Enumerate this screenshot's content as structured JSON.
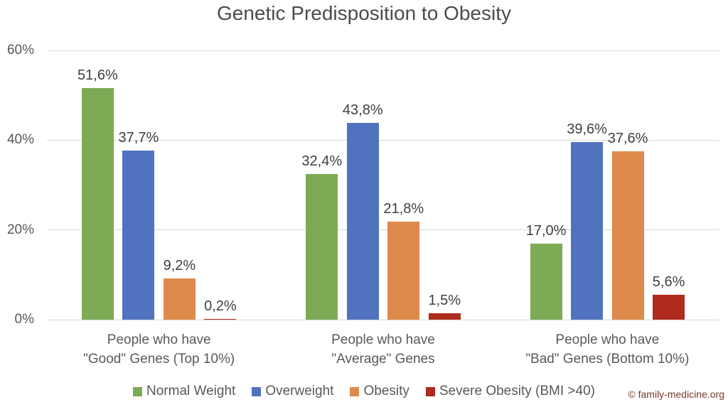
{
  "chart_data": {
    "type": "bar",
    "title": "Genetic Predisposition to Obesity",
    "categories": [
      "People who have\n\"Good\" Genes (Top 10%)",
      "People who have\n\"Average\" Genes",
      "People who have\n\"Bad\" Genes (Bottom 10%)"
    ],
    "series": [
      {
        "name": "Normal Weight",
        "color": "#7daa55",
        "values": [
          51.6,
          32.4,
          17.0
        ],
        "labels": [
          "51,6%",
          "32,4%",
          "17,0%"
        ]
      },
      {
        "name": "Overweight",
        "color": "#5173bf",
        "values": [
          37.7,
          43.8,
          39.6
        ],
        "labels": [
          "37,7%",
          "43,8%",
          "39,6%"
        ]
      },
      {
        "name": "Obesity",
        "color": "#df8a4b",
        "values": [
          9.2,
          21.8,
          37.6
        ],
        "labels": [
          "9,2%",
          "21,8%",
          "37,6%"
        ]
      },
      {
        "name": "Severe Obesity (BMI >40)",
        "color": "#ae2b1d",
        "values": [
          0.2,
          1.5,
          5.6
        ],
        "labels": [
          "0,2%",
          "1,5%",
          "5,6%"
        ]
      }
    ],
    "y_axis": {
      "ticks": [
        "0%",
        "20%",
        "40%",
        "60%"
      ],
      "tick_values": [
        0,
        20,
        40,
        60
      ],
      "max": 60
    },
    "ylim": [
      0,
      60
    ],
    "grid": true,
    "legend_position": "bottom",
    "gridline_color": "#d9d9d9"
  },
  "branding": {
    "copyright": "© family-medicine.org"
  }
}
